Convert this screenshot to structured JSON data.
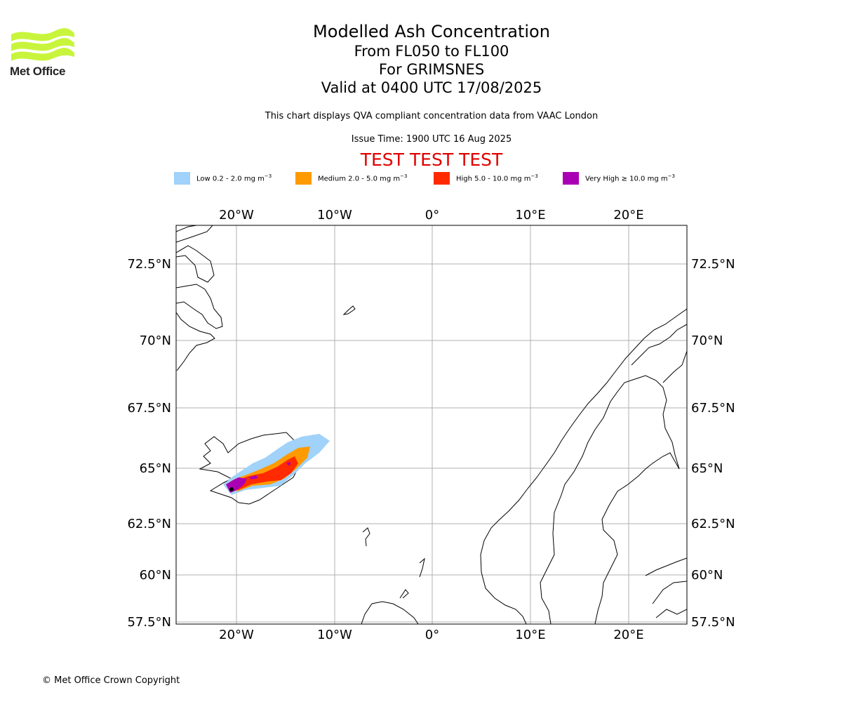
{
  "brand": {
    "logo_text": "Met Office",
    "logo_color": "#c8f53c"
  },
  "titles": {
    "main": "Modelled Ash Concentration",
    "levels": "From FL050 to FL100",
    "volcano": "For GRIMSNES",
    "valid": "Valid at 0400 UTC 17/08/2025"
  },
  "description": "This chart displays QVA compliant concentration data from VAAC London",
  "issue_time": "Issue Time: 1900 UTC 16 Aug 2025",
  "test_banner": "TEST TEST TEST",
  "legend": [
    {
      "label": "Low 0.2 - 2.0 mg m",
      "color": "#a0d2fa"
    },
    {
      "label": "Medium 2.0 - 5.0 mg m",
      "color": "#ff9a00"
    },
    {
      "label": "High 5.0 - 10.0 mg m",
      "color": "#ff2a00"
    },
    {
      "label": "Very High ≥ 10.0 mg m",
      "color": "#aa00b4"
    }
  ],
  "legend_unit_exponent": "−3",
  "map": {
    "lon_labels": [
      "20°W",
      "10°W",
      "0°",
      "10°E",
      "20°E"
    ],
    "lat_labels": [
      "72.5°N",
      "70°N",
      "67.5°N",
      "65°N",
      "62.5°N",
      "60°N",
      "57.5°N"
    ],
    "gridline_color": "#b0b0b0"
  },
  "copyright": "© Met Office Crown Copyright"
}
